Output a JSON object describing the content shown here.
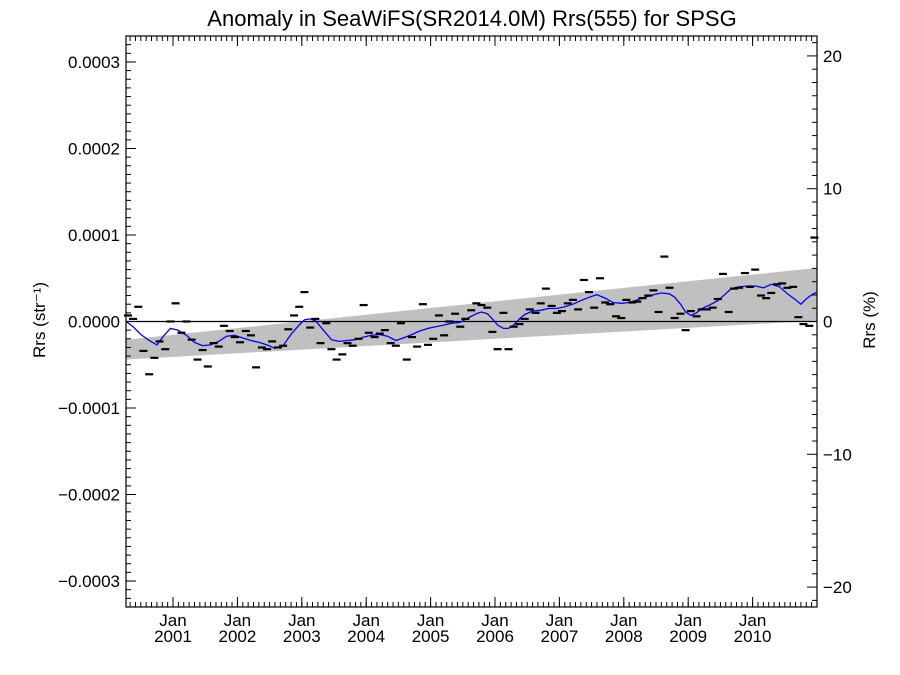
{
  "chart_data": {
    "type": "scatter",
    "title": "Anomaly in SeaWiFS(SR2014.0M) Rrs(555) for SPSG",
    "ylabel_left": "Rrs (str⁻¹)",
    "ylabel_right": "Rrs (%)",
    "xlabel": "",
    "x_range": [
      2000.27,
      2011.0
    ],
    "y_range": [
      -0.00033,
      0.00033
    ],
    "y_right_range": [
      -21.5,
      21.5
    ],
    "y_ticks_left": [
      {
        "value": 0.0003,
        "label": "0.0003"
      },
      {
        "value": 0.0002,
        "label": "0.0002"
      },
      {
        "value": 0.0001,
        "label": "0.0001"
      },
      {
        "value": 0.0,
        "label": "0.0000"
      },
      {
        "value": -0.0001,
        "label": "−0.0001"
      },
      {
        "value": -0.0002,
        "label": "−0.0002"
      },
      {
        "value": -0.0003,
        "label": "−0.0003"
      }
    ],
    "y_ticks_right": [
      {
        "value": 20,
        "label": "20"
      },
      {
        "value": 10,
        "label": "10"
      },
      {
        "value": 0,
        "label": "0"
      },
      {
        "value": -10,
        "label": "−10"
      },
      {
        "value": -20,
        "label": "−20"
      }
    ],
    "x_ticks": [
      {
        "value": 2001.0,
        "month": "Jan",
        "year": "2001"
      },
      {
        "value": 2002.0,
        "month": "Jan",
        "year": "2002"
      },
      {
        "value": 2003.0,
        "month": "Jan",
        "year": "2003"
      },
      {
        "value": 2004.0,
        "month": "Jan",
        "year": "2004"
      },
      {
        "value": 2005.0,
        "month": "Jan",
        "year": "2005"
      },
      {
        "value": 2006.0,
        "month": "Jan",
        "year": "2006"
      },
      {
        "value": 2007.0,
        "month": "Jan",
        "year": "2007"
      },
      {
        "value": 2008.0,
        "month": "Jan",
        "year": "2008"
      },
      {
        "value": 2009.0,
        "month": "Jan",
        "year": "2009"
      },
      {
        "value": 2010.0,
        "month": "Jan",
        "year": "2010"
      }
    ],
    "trend_band": {
      "start": {
        "x": 2000.27,
        "lower": -4.4e-05,
        "upper": -2.1e-05
      },
      "end": {
        "x": 2011.0,
        "lower": 1e-06,
        "upper": 6.2e-05
      }
    },
    "zero_line": 0.0,
    "colors": {
      "band": "#c0c0c0",
      "smooth": "#0000ff",
      "points": "#000000",
      "zero": "#000000"
    },
    "points": [
      [
        2000.3,
        7e-06
      ],
      [
        2000.38,
        3e-06
      ],
      [
        2000.46,
        1.7e-05
      ],
      [
        2000.54,
        -3.4e-05
      ],
      [
        2000.63,
        -6.1e-05
      ],
      [
        2000.71,
        -4.2e-05
      ],
      [
        2000.79,
        -2.3e-05
      ],
      [
        2000.88,
        -3.2e-05
      ],
      [
        2000.96,
        0.0
      ],
      [
        2001.04,
        2.1e-05
      ],
      [
        2001.13,
        -1.3e-05
      ],
      [
        2001.21,
        0.0
      ],
      [
        2001.29,
        -2.1e-05
      ],
      [
        2001.38,
        -4.4e-05
      ],
      [
        2001.46,
        -3.3e-05
      ],
      [
        2001.54,
        -5.2e-05
      ],
      [
        2001.63,
        -2.5e-05
      ],
      [
        2001.71,
        -2.9e-05
      ],
      [
        2001.79,
        -5e-06
      ],
      [
        2001.88,
        -1.1e-05
      ],
      [
        2001.96,
        -1.8e-05
      ],
      [
        2002.04,
        -2.4e-05
      ],
      [
        2002.13,
        -1.1e-05
      ],
      [
        2002.21,
        -1.6e-05
      ],
      [
        2002.29,
        -5.3e-05
      ],
      [
        2002.38,
        -3e-05
      ],
      [
        2002.46,
        -3.2e-05
      ],
      [
        2002.54,
        -2.3e-05
      ],
      [
        2002.63,
        -3e-05
      ],
      [
        2002.71,
        -2.8e-05
      ],
      [
        2002.79,
        -9e-06
      ],
      [
        2002.88,
        7e-06
      ],
      [
        2002.96,
        1.7e-05
      ],
      [
        2003.04,
        3.4e-05
      ],
      [
        2003.13,
        -7e-06
      ],
      [
        2003.21,
        3e-06
      ],
      [
        2003.29,
        -2.5e-05
      ],
      [
        2003.38,
        -2e-06
      ],
      [
        2003.46,
        -3.2e-05
      ],
      [
        2003.54,
        -4.4e-05
      ],
      [
        2003.63,
        -3.8e-05
      ],
      [
        2003.71,
        -2.5e-05
      ],
      [
        2003.79,
        -2.8e-05
      ],
      [
        2003.88,
        -2e-05
      ],
      [
        2003.96,
        1.9e-05
      ],
      [
        2004.04,
        -1.3e-05
      ],
      [
        2004.13,
        -1.8e-05
      ],
      [
        2004.21,
        -1.4e-05
      ],
      [
        2004.29,
        -1e-05
      ],
      [
        2004.38,
        -2.5e-05
      ],
      [
        2004.46,
        -2.8e-05
      ],
      [
        2004.54,
        -2e-06
      ],
      [
        2004.63,
        -4.4e-05
      ],
      [
        2004.71,
        -1.8e-05
      ],
      [
        2004.79,
        -2.9e-05
      ],
      [
        2004.88,
        2e-05
      ],
      [
        2004.96,
        -2.7e-05
      ],
      [
        2005.04,
        -2e-05
      ],
      [
        2005.13,
        7e-06
      ],
      [
        2005.21,
        -1.6e-05
      ],
      [
        2005.29,
        0.0
      ],
      [
        2005.38,
        9e-06
      ],
      [
        2005.46,
        -6e-06
      ],
      [
        2005.54,
        3e-06
      ],
      [
        2005.63,
        1.3e-05
      ],
      [
        2005.71,
        2.1e-05
      ],
      [
        2005.79,
        1.9e-05
      ],
      [
        2005.88,
        1.6e-05
      ],
      [
        2005.96,
        -1.2e-05
      ],
      [
        2006.04,
        -3.2e-05
      ],
      [
        2006.13,
        1e-05
      ],
      [
        2006.21,
        -3.2e-05
      ],
      [
        2006.29,
        -6e-06
      ],
      [
        2006.38,
        -3e-06
      ],
      [
        2006.46,
        3e-06
      ],
      [
        2006.54,
        1.4e-05
      ],
      [
        2006.63,
        1e-05
      ],
      [
        2006.71,
        2.1e-05
      ],
      [
        2006.79,
        3.8e-05
      ],
      [
        2006.88,
        1.8e-05
      ],
      [
        2006.96,
        1e-05
      ],
      [
        2007.04,
        1.2e-05
      ],
      [
        2007.13,
        2.1e-05
      ],
      [
        2007.21,
        2.5e-05
      ],
      [
        2007.29,
        1.4e-05
      ],
      [
        2007.38,
        4.8e-05
      ],
      [
        2007.46,
        3.4e-05
      ],
      [
        2007.54,
        1.6e-05
      ],
      [
        2007.63,
        5e-05
      ],
      [
        2007.71,
        2.2e-05
      ],
      [
        2007.79,
        2e-05
      ],
      [
        2007.88,
        6e-06
      ],
      [
        2007.96,
        4e-06
      ],
      [
        2008.04,
        2.5e-05
      ],
      [
        2008.13,
        2.2e-05
      ],
      [
        2008.21,
        2.3e-05
      ],
      [
        2008.29,
        2.7e-05
      ],
      [
        2008.38,
        3e-05
      ],
      [
        2008.46,
        3.6e-05
      ],
      [
        2008.54,
        1.1e-05
      ],
      [
        2008.63,
        7.5e-05
      ],
      [
        2008.71,
        3.9e-05
      ],
      [
        2008.79,
        4e-06
      ],
      [
        2008.88,
        9e-06
      ],
      [
        2008.96,
        -1e-05
      ],
      [
        2009.04,
        1.2e-05
      ],
      [
        2009.13,
        6e-06
      ],
      [
        2009.21,
        1.4e-05
      ],
      [
        2009.29,
        1.4e-05
      ],
      [
        2009.38,
        1.6e-05
      ],
      [
        2009.46,
        2.6e-05
      ],
      [
        2009.54,
        5.5e-05
      ],
      [
        2009.63,
        1.1e-05
      ],
      [
        2009.71,
        3.8e-05
      ],
      [
        2009.79,
        3.9e-05
      ],
      [
        2009.88,
        5.6e-05
      ],
      [
        2009.96,
        4e-05
      ],
      [
        2010.04,
        6e-05
      ],
      [
        2010.13,
        3e-05
      ],
      [
        2010.21,
        2.7e-05
      ],
      [
        2010.29,
        3.3e-05
      ],
      [
        2010.38,
        4.3e-05
      ],
      [
        2010.46,
        4.4e-05
      ],
      [
        2010.54,
        3.9e-05
      ],
      [
        2010.63,
        4e-05
      ],
      [
        2010.71,
        5e-06
      ],
      [
        2010.79,
        -3e-06
      ],
      [
        2010.88,
        -5e-06
      ],
      [
        2010.96,
        9.7e-05
      ]
    ],
    "smooth": [
      [
        2000.27,
        0.0
      ],
      [
        2000.38,
        -6e-06
      ],
      [
        2000.5,
        -1.5e-05
      ],
      [
        2000.63,
        -2.2e-05
      ],
      [
        2000.75,
        -2.7e-05
      ],
      [
        2000.85,
        -1.7e-05
      ],
      [
        2000.96,
        -8e-06
      ],
      [
        2001.08,
        -1e-05
      ],
      [
        2001.21,
        -1.6e-05
      ],
      [
        2001.33,
        -2.4e-05
      ],
      [
        2001.46,
        -2.8e-05
      ],
      [
        2001.58,
        -2.7e-05
      ],
      [
        2001.71,
        -2.3e-05
      ],
      [
        2001.83,
        -1.7e-05
      ],
      [
        2001.96,
        -1.6e-05
      ],
      [
        2002.08,
        -1.9e-05
      ],
      [
        2002.21,
        -2.2e-05
      ],
      [
        2002.33,
        -2.4e-05
      ],
      [
        2002.46,
        -2.7e-05
      ],
      [
        2002.58,
        -3.1e-05
      ],
      [
        2002.71,
        -2.8e-05
      ],
      [
        2002.83,
        -1.5e-05
      ],
      [
        2002.96,
        -4e-06
      ],
      [
        2003.04,
        2e-06
      ],
      [
        2003.13,
        3e-06
      ],
      [
        2003.21,
        1e-06
      ],
      [
        2003.29,
        -6e-06
      ],
      [
        2003.38,
        -1.4e-05
      ],
      [
        2003.46,
        -2.1e-05
      ],
      [
        2003.58,
        -2.3e-05
      ],
      [
        2003.71,
        -2.2e-05
      ],
      [
        2003.83,
        -2.1e-05
      ],
      [
        2003.96,
        -1.8e-05
      ],
      [
        2004.08,
        -1.6e-05
      ],
      [
        2004.21,
        -1.5e-05
      ],
      [
        2004.33,
        -1.7e-05
      ],
      [
        2004.46,
        -2.2e-05
      ],
      [
        2004.58,
        -1.9e-05
      ],
      [
        2004.71,
        -1.5e-05
      ],
      [
        2004.83,
        -1.1e-05
      ],
      [
        2004.96,
        -8e-06
      ],
      [
        2005.08,
        -6e-06
      ],
      [
        2005.21,
        -4e-06
      ],
      [
        2005.33,
        -2e-06
      ],
      [
        2005.46,
        -1e-06
      ],
      [
        2005.58,
        4e-06
      ],
      [
        2005.71,
        9e-06
      ],
      [
        2005.79,
        1.1e-05
      ],
      [
        2005.88,
        9e-06
      ],
      [
        2005.96,
        3e-06
      ],
      [
        2006.04,
        -4e-06
      ],
      [
        2006.13,
        -8e-06
      ],
      [
        2006.21,
        -8e-06
      ],
      [
        2006.29,
        -4e-06
      ],
      [
        2006.38,
        3e-06
      ],
      [
        2006.46,
        8e-06
      ],
      [
        2006.58,
        1.2e-05
      ],
      [
        2006.71,
        1.3e-05
      ],
      [
        2006.83,
        1.5e-05
      ],
      [
        2006.96,
        1.5e-05
      ],
      [
        2007.08,
        1.7e-05
      ],
      [
        2007.21,
        2e-05
      ],
      [
        2007.33,
        2.4e-05
      ],
      [
        2007.46,
        2.8e-05
      ],
      [
        2007.58,
        3.1e-05
      ],
      [
        2007.71,
        2.7e-05
      ],
      [
        2007.83,
        2.2e-05
      ],
      [
        2007.96,
        2.1e-05
      ],
      [
        2008.08,
        2.2e-05
      ],
      [
        2008.21,
        2.5e-05
      ],
      [
        2008.33,
        2.8e-05
      ],
      [
        2008.46,
        3.1e-05
      ],
      [
        2008.58,
        3.3e-05
      ],
      [
        2008.71,
        3.2e-05
      ],
      [
        2008.79,
        2.8e-05
      ],
      [
        2008.88,
        2e-05
      ],
      [
        2008.96,
        1.1e-05
      ],
      [
        2009.04,
        7e-06
      ],
      [
        2009.13,
        1e-05
      ],
      [
        2009.21,
        1.5e-05
      ],
      [
        2009.33,
        1.9e-05
      ],
      [
        2009.46,
        2.4e-05
      ],
      [
        2009.58,
        3.2e-05
      ],
      [
        2009.67,
        3.8e-05
      ],
      [
        2009.79,
        4e-05
      ],
      [
        2009.92,
        4.1e-05
      ],
      [
        2010.04,
        4.1e-05
      ],
      [
        2010.17,
        3.9e-05
      ],
      [
        2010.29,
        4.3e-05
      ],
      [
        2010.42,
        4e-05
      ],
      [
        2010.54,
        3.2e-05
      ],
      [
        2010.67,
        2.5e-05
      ],
      [
        2010.75,
        2e-05
      ],
      [
        2010.83,
        2.6e-05
      ],
      [
        2010.92,
        3.1e-05
      ],
      [
        2011.0,
        3.4e-05
      ]
    ]
  }
}
